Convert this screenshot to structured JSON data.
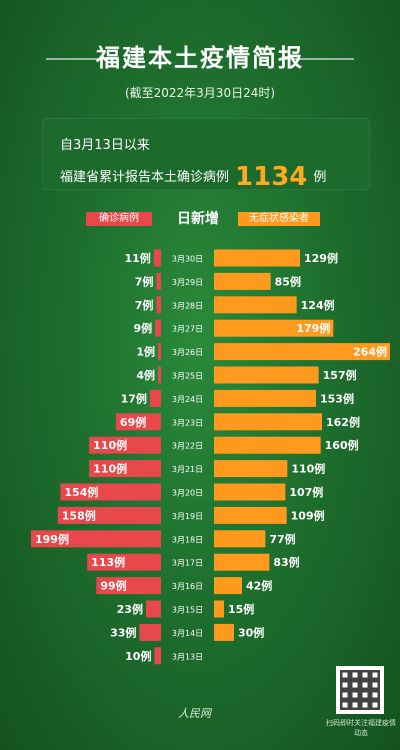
{
  "header": {
    "title": "福建本土疫情简报",
    "subtitle": "(截至2022年3月30日24时)"
  },
  "summary": {
    "line1": "自3月13日以来",
    "line2_prefix": "福建省累计报告本土确诊病例",
    "total": "1134",
    "line2_suffix": "例"
  },
  "legend": {
    "confirmed": "确诊病例",
    "daily": "日新增",
    "asymptomatic": "无症状感染者"
  },
  "footer": {
    "logo": "人民网",
    "qr_caption": "扫码即时关注福建疫情动态"
  },
  "colors": {
    "confirmed": "#e8474b",
    "asymptomatic": "#ff9a1e",
    "background": "#1e6f2e"
  },
  "chart_data": {
    "type": "bar",
    "categories": [
      "3月30日",
      "3月29日",
      "3月28日",
      "3月27日",
      "3月26日",
      "3月25日",
      "3月24日",
      "3月23日",
      "3月22日",
      "3月21日",
      "3月20日",
      "3月19日",
      "3月18日",
      "3月17日",
      "3月16日",
      "3月15日",
      "3月14日",
      "3月13日"
    ],
    "series": [
      {
        "name": "确诊病例",
        "values": [
          11,
          7,
          7,
          9,
          1,
          4,
          17,
          69,
          110,
          110,
          154,
          158,
          199,
          113,
          99,
          23,
          33,
          10
        ],
        "labels": [
          "11例",
          "7例",
          "7例",
          "9例",
          "1例",
          "4例",
          "17例",
          "69例",
          "110例",
          "110例",
          "154例",
          "158例",
          "199例",
          "113例",
          "99例",
          "23例",
          "33例",
          "10例"
        ]
      },
      {
        "name": "无症状感染者",
        "values": [
          129,
          85,
          124,
          179,
          264,
          157,
          153,
          162,
          160,
          110,
          107,
          109,
          77,
          83,
          42,
          15,
          30,
          null
        ],
        "labels": [
          "129例",
          "85例",
          "124例",
          "179例",
          "264例",
          "157例",
          "153例",
          "162例",
          "160例",
          "110例",
          "107例",
          "109例",
          "77例",
          "83例",
          "42例",
          "15例",
          "30例",
          ""
        ]
      }
    ]
  }
}
